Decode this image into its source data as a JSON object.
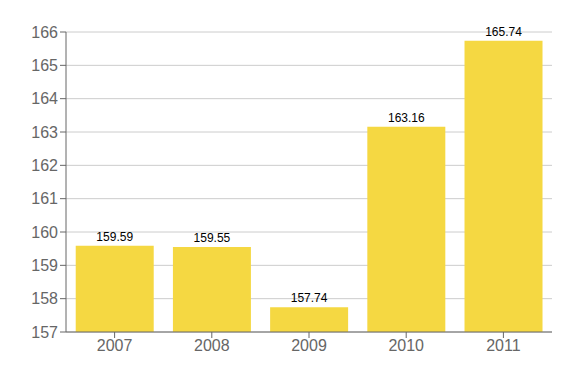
{
  "chart_data": {
    "type": "bar",
    "categories": [
      "2007",
      "2008",
      "2009",
      "2010",
      "2011"
    ],
    "values": [
      159.59,
      159.55,
      157.74,
      163.16,
      165.74
    ],
    "color": "#F5D842",
    "ylim": [
      157,
      166
    ],
    "yticks": [
      157,
      158,
      159,
      160,
      161,
      162,
      163,
      164,
      165,
      166
    ],
    "grid": true,
    "data_labels": true
  }
}
